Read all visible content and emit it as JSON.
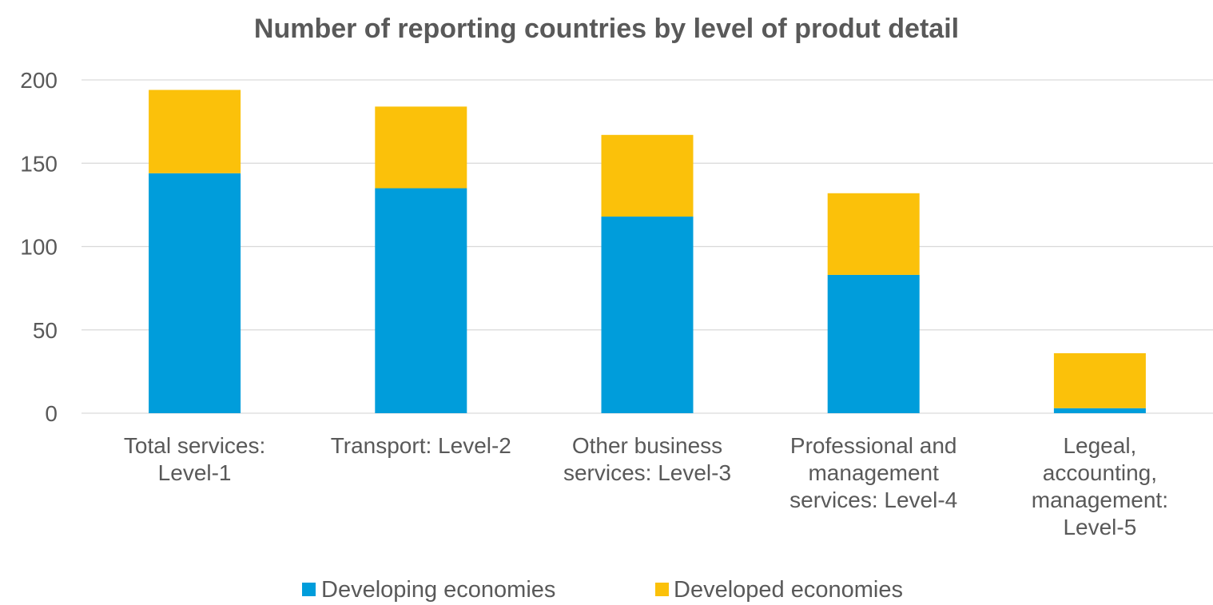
{
  "chart_data": {
    "type": "bar",
    "stacked": true,
    "title": "Number of reporting countries by level of produt detail",
    "xlabel": "",
    "ylabel": "",
    "ylim": [
      0,
      200
    ],
    "yticks": [
      0,
      50,
      100,
      150,
      200
    ],
    "grid": true,
    "legend_position": "bottom",
    "categories": [
      [
        "Total services:",
        "Level-1"
      ],
      [
        "Transport: Level-2"
      ],
      [
        "Other business",
        "services: Level-3"
      ],
      [
        "Professional and",
        "management",
        "services: Level-4"
      ],
      [
        "Legeal,",
        "accounting,",
        "management:",
        "Level-5"
      ]
    ],
    "series": [
      {
        "name": "Developing economies",
        "color": "#009ddb",
        "values": [
          144,
          135,
          118,
          83,
          3
        ]
      },
      {
        "name": "Developed economies",
        "color": "#fbc10a",
        "values": [
          50,
          49,
          49,
          49,
          33
        ]
      }
    ]
  }
}
